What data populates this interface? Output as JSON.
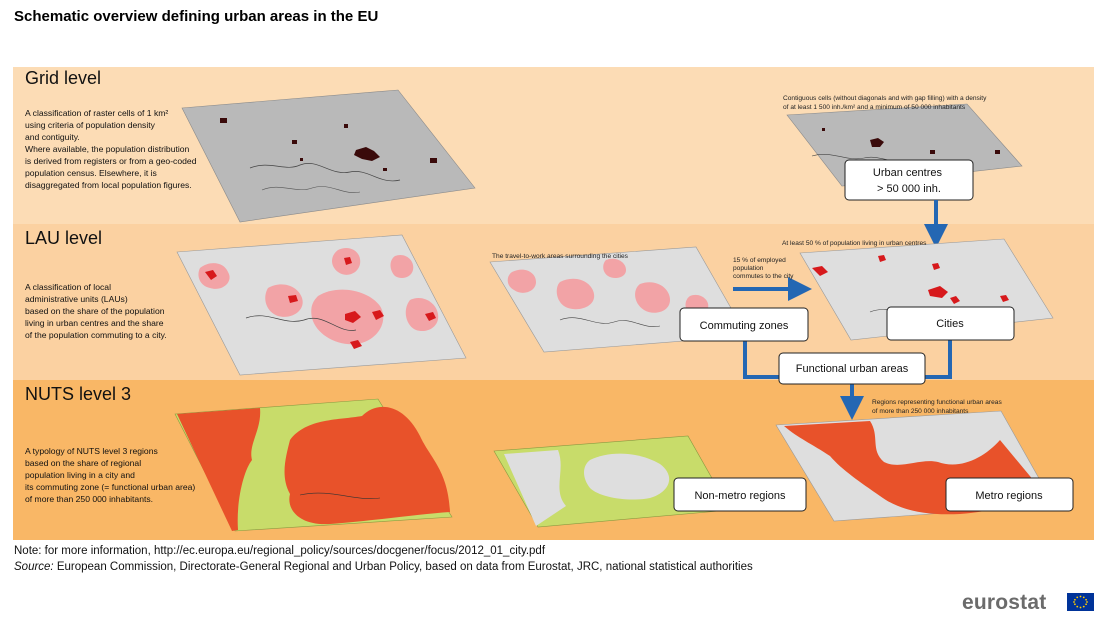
{
  "title": "Schematic overview defining urban areas in the EU",
  "bands": {
    "grid": {
      "title": "Grid level",
      "description": [
        "A classification of raster cells of 1 km²",
        "using criteria of population density",
        "and contiguity.",
        "Where available, the population distribution",
        "is derived from registers or from a geo-coded",
        "population census. Elsewhere, it is",
        "disaggregated from local population figures."
      ],
      "annotation": [
        "Contiguous cells (without diagonals and with gap filling) with a  density",
        "of at least 1 500 inh./km² and a minimum of 50 000 inhabitants"
      ],
      "box": [
        "Urban centres",
        "> 50 000 inh."
      ]
    },
    "lau": {
      "title": "LAU level",
      "description": [
        "A classification of local",
        "administrative units (LAUs)",
        "based on the share of the population",
        "living in urban centres and the share",
        "of the population commuting to a city."
      ],
      "annotation_travel": "The travel-to-work areas surrounding the cities",
      "annotation_commute": [
        "15 % of employed",
        "population",
        "commutes to the city"
      ],
      "annotation_cities": "At least 50 % of population living in urban centres",
      "box_commuting": "Commuting zones",
      "box_cities": "Cities",
      "box_fua": "Functional urban areas"
    },
    "nuts": {
      "title": "NUTS level 3",
      "description": [
        "A typology of NUTS level 3 regions",
        "based on the share of regional",
        "population living in a city and",
        "its commuting zone (= functional urban area)",
        "of more than 250 000 inhabitants."
      ],
      "annotation": [
        "Regions representing functional urban areas",
        "of more than 250 000 inhabitants"
      ],
      "box_nonmetro": "Non-metro regions",
      "box_metro": "Metro regions"
    }
  },
  "colors": {
    "band_grid": "#fcdcb5",
    "band_lau": "#fbd1a1",
    "band_nuts": "#f9b766",
    "arrow": "#2467b3",
    "urban_red": "#d7191c",
    "metro_orange": "#e8522a",
    "nonmetro_green": "#c8dc6a",
    "grid_gray": "#b9b9b9"
  },
  "note": "Note: for more information, http://ec.europa.eu/regional_policy/sources/docgener/focus/2012_01_city.pdf",
  "source_label": "Source:",
  "source_text": " European Commission, Directorate-General Regional and Urban Policy, based on data from Eurostat, JRC, national statistical authorities",
  "logo": "eurostat"
}
